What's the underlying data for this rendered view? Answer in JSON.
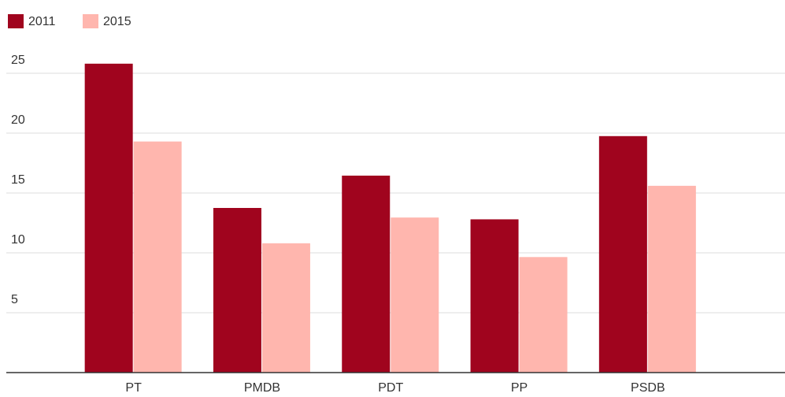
{
  "chart_data": {
    "type": "bar",
    "categories": [
      "PT",
      "PMDB",
      "PDT",
      "PP",
      "PSDB"
    ],
    "series": [
      {
        "name": "2011",
        "color": "#a0041e",
        "values": [
          25.8,
          13.75,
          16.45,
          12.8,
          19.75
        ]
      },
      {
        "name": "2015",
        "color": "#ffb6ae",
        "values": [
          19.3,
          10.8,
          12.95,
          9.65,
          15.6
        ]
      }
    ],
    "ylim": [
      0,
      27.5
    ],
    "yticks": [
      5,
      10,
      15,
      20,
      25
    ],
    "grid": true,
    "legend": "top-left"
  }
}
